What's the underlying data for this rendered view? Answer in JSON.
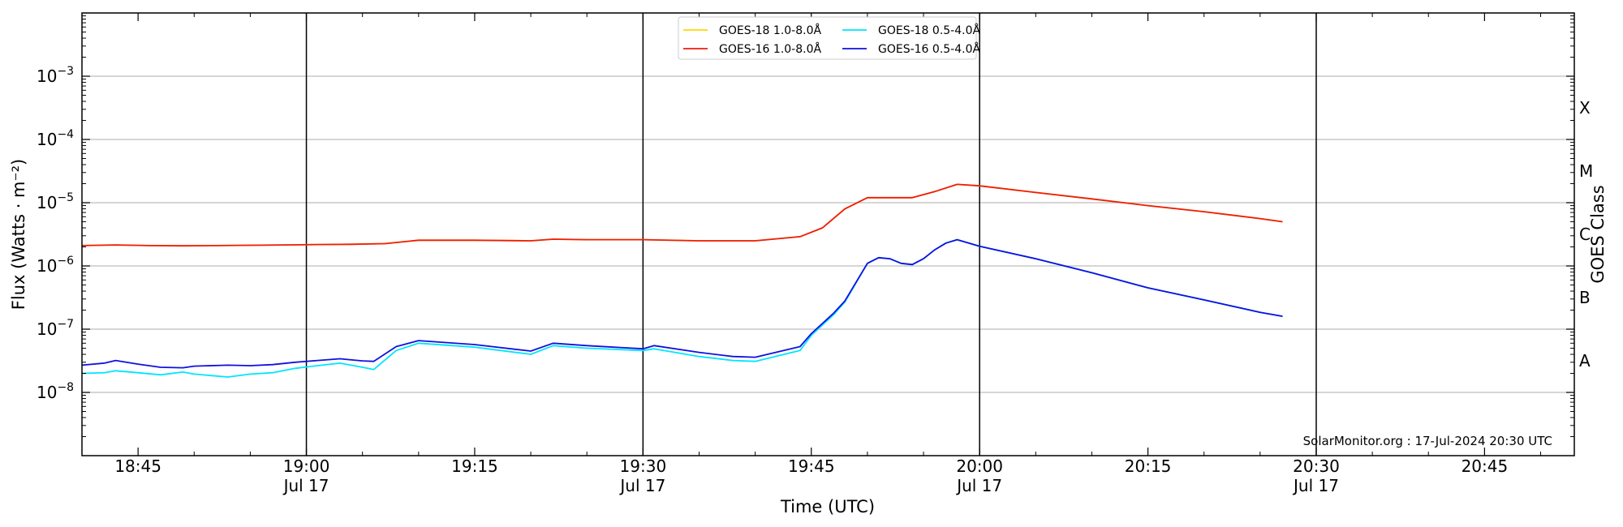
{
  "chart_data": {
    "type": "line",
    "title": "",
    "xlabel": "Time (UTC)",
    "ylabel": "Flux (Watts · m⁻²)",
    "y2label": "GOES Class",
    "yscale": "log",
    "ylim": [
      1e-09,
      0.01
    ],
    "xlim": [
      "18:40",
      "20:53"
    ],
    "grid": "horizontal",
    "legend_position": "top-center",
    "credit": "SolarMonitor.org : 17-Jul-2024 20:30 UTC",
    "x_ticks": [
      {
        "time": "18:45",
        "label": "18:45",
        "date": ""
      },
      {
        "time": "19:00",
        "label": "19:00",
        "date": "Jul 17"
      },
      {
        "time": "19:15",
        "label": "19:15",
        "date": ""
      },
      {
        "time": "19:30",
        "label": "19:30",
        "date": "Jul 17"
      },
      {
        "time": "19:45",
        "label": "19:45",
        "date": ""
      },
      {
        "time": "20:00",
        "label": "20:00",
        "date": "Jul 17"
      },
      {
        "time": "20:15",
        "label": "20:15",
        "date": ""
      },
      {
        "time": "20:30",
        "label": "20:30",
        "date": "Jul 17"
      },
      {
        "time": "20:45",
        "label": "20:45",
        "date": ""
      }
    ],
    "vertical_lines": [
      "19:00",
      "19:30",
      "20:00",
      "20:30"
    ],
    "y_ticks": [
      {
        "exp": -8,
        "base": "10",
        "sup": "−8"
      },
      {
        "exp": -7,
        "base": "10",
        "sup": "−7"
      },
      {
        "exp": -6,
        "base": "10",
        "sup": "−6"
      },
      {
        "exp": -5,
        "base": "10",
        "sup": "−5"
      },
      {
        "exp": -4,
        "base": "10",
        "sup": "−4"
      },
      {
        "exp": -3,
        "base": "10",
        "sup": "−3"
      }
    ],
    "goes_classes": [
      {
        "label": "A",
        "exp": -7.5
      },
      {
        "label": "B",
        "exp": -6.5
      },
      {
        "label": "C",
        "exp": -5.5
      },
      {
        "label": "M",
        "exp": -4.5
      },
      {
        "label": "X",
        "exp": -3.5
      }
    ],
    "series": [
      {
        "name": "GOES-18 1.0-8.0Å",
        "color": "#ffd700",
        "x": [
          "18:40",
          "18:43",
          "18:46",
          "18:49",
          "18:52",
          "18:55",
          "18:58",
          "19:01",
          "19:04",
          "19:07",
          "19:10",
          "19:15",
          "19:20",
          "19:22",
          "19:25",
          "19:30",
          "19:35",
          "19:40",
          "19:44",
          "19:46",
          "19:48",
          "19:50",
          "19:52",
          "19:54",
          "19:56",
          "19:58",
          "20:00",
          "20:05",
          "20:10",
          "20:15",
          "20:20",
          "20:25",
          "20:27"
        ],
        "values": [
          2.1e-06,
          2.15e-06,
          2.1e-06,
          2.08e-06,
          2.1e-06,
          2.12e-06,
          2.15e-06,
          2.18e-06,
          2.2e-06,
          2.25e-06,
          2.55e-06,
          2.55e-06,
          2.5e-06,
          2.65e-06,
          2.6e-06,
          2.6e-06,
          2.5e-06,
          2.5e-06,
          2.9e-06,
          4e-06,
          8e-06,
          1.2e-05,
          1.2e-05,
          1.2e-05,
          1.5e-05,
          1.95e-05,
          1.85e-05,
          1.45e-05,
          1.15e-05,
          9e-06,
          7.2e-06,
          5.6e-06,
          5e-06
        ]
      },
      {
        "name": "GOES-16 1.0-8.0Å",
        "color": "#ee1c0e",
        "x": [
          "18:40",
          "18:43",
          "18:46",
          "18:49",
          "18:52",
          "18:55",
          "18:58",
          "19:01",
          "19:04",
          "19:07",
          "19:10",
          "19:15",
          "19:20",
          "19:22",
          "19:25",
          "19:30",
          "19:35",
          "19:40",
          "19:44",
          "19:46",
          "19:48",
          "19:50",
          "19:52",
          "19:54",
          "19:56",
          "19:58",
          "20:00",
          "20:05",
          "20:10",
          "20:15",
          "20:20",
          "20:25",
          "20:27"
        ],
        "values": [
          2.1e-06,
          2.15e-06,
          2.1e-06,
          2.08e-06,
          2.1e-06,
          2.12e-06,
          2.15e-06,
          2.18e-06,
          2.2e-06,
          2.25e-06,
          2.55e-06,
          2.55e-06,
          2.5e-06,
          2.65e-06,
          2.6e-06,
          2.6e-06,
          2.5e-06,
          2.5e-06,
          2.9e-06,
          4e-06,
          8e-06,
          1.2e-05,
          1.2e-05,
          1.2e-05,
          1.5e-05,
          1.95e-05,
          1.85e-05,
          1.45e-05,
          1.15e-05,
          9e-06,
          7.2e-06,
          5.6e-06,
          5e-06
        ]
      },
      {
        "name": "GOES-18 0.5-4.0Å",
        "color": "#00e5ff",
        "x": [
          "18:40",
          "18:42",
          "18:43",
          "18:45",
          "18:47",
          "18:49",
          "18:50",
          "18:53",
          "18:55",
          "18:57",
          "18:59",
          "19:01",
          "19:03",
          "19:05",
          "19:06",
          "19:08",
          "19:10",
          "19:15",
          "19:20",
          "19:22",
          "19:25",
          "19:30",
          "19:31",
          "19:35",
          "19:38",
          "19:40",
          "19:44",
          "19:45",
          "19:47",
          "19:48",
          "19:50",
          "19:51",
          "19:52",
          "19:53",
          "19:54",
          "19:55",
          "19:56",
          "19:57",
          "19:58",
          "20:00",
          "20:05",
          "20:10",
          "20:15",
          "20:20",
          "20:25",
          "20:27"
        ],
        "values": [
          2e-08,
          2.05e-08,
          2.2e-08,
          2.05e-08,
          1.9e-08,
          2.1e-08,
          1.95e-08,
          1.75e-08,
          1.95e-08,
          2.05e-08,
          2.4e-08,
          2.65e-08,
          2.9e-08,
          2.5e-08,
          2.3e-08,
          4.6e-08,
          6e-08,
          5.2e-08,
          4e-08,
          5.5e-08,
          5e-08,
          4.6e-08,
          4.9e-08,
          3.7e-08,
          3.2e-08,
          3.1e-08,
          4.6e-08,
          8e-08,
          1.7e-07,
          2.7e-07,
          1.1e-06,
          1.35e-06,
          1.3e-06,
          1.1e-06,
          1.05e-06,
          1.3e-06,
          1.8e-06,
          2.3e-06,
          2.6e-06,
          2.05e-06,
          1.3e-06,
          7.8e-07,
          4.5e-07,
          2.9e-07,
          1.85e-07,
          1.6e-07
        ]
      },
      {
        "name": "GOES-16 0.5-4.0Å",
        "color": "#1010e0",
        "x": [
          "18:40",
          "18:42",
          "18:43",
          "18:45",
          "18:47",
          "18:49",
          "18:50",
          "18:53",
          "18:55",
          "18:57",
          "18:59",
          "19:01",
          "19:03",
          "19:05",
          "19:06",
          "19:08",
          "19:10",
          "19:15",
          "19:20",
          "19:22",
          "19:25",
          "19:30",
          "19:31",
          "19:35",
          "19:38",
          "19:40",
          "19:44",
          "19:45",
          "19:47",
          "19:48",
          "19:50",
          "19:51",
          "19:52",
          "19:53",
          "19:54",
          "19:55",
          "19:56",
          "19:57",
          "19:58",
          "20:00",
          "20:05",
          "20:10",
          "20:15",
          "20:20",
          "20:25",
          "20:27"
        ],
        "values": [
          2.7e-08,
          2.9e-08,
          3.2e-08,
          2.8e-08,
          2.5e-08,
          2.45e-08,
          2.6e-08,
          2.7e-08,
          2.65e-08,
          2.75e-08,
          3e-08,
          3.2e-08,
          3.4e-08,
          3.15e-08,
          3.1e-08,
          5.3e-08,
          6.6e-08,
          5.7e-08,
          4.5e-08,
          6e-08,
          5.5e-08,
          4.9e-08,
          5.5e-08,
          4.3e-08,
          3.7e-08,
          3.6e-08,
          5.3e-08,
          8.5e-08,
          1.8e-07,
          2.8e-07,
          1.1e-06,
          1.35e-06,
          1.3e-06,
          1.1e-06,
          1.05e-06,
          1.3e-06,
          1.8e-06,
          2.3e-06,
          2.6e-06,
          2.05e-06,
          1.3e-06,
          7.8e-07,
          4.5e-07,
          2.9e-07,
          1.85e-07,
          1.6e-07
        ]
      }
    ]
  }
}
